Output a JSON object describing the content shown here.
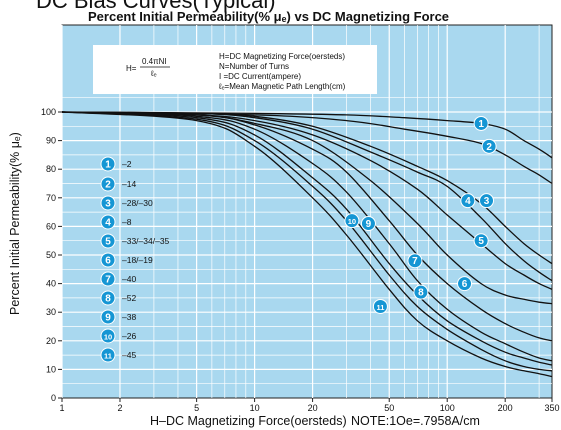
{
  "chart_data": {
    "type": "line",
    "title_top": "DC Bias Curves(Typical)",
    "title": "Percent Initial Permeability(% μₑ) vs DC Magnetizing Force",
    "xlabel": "H–DC Magnetizing Force(oersteds)",
    "xnote": "NOTE:1Oe=.7958A/cm",
    "ylabel": "Percent Initial Permeability(% μₑ)",
    "xscale": "log",
    "xlim": [
      1,
      350
    ],
    "ylim": [
      0,
      105
    ],
    "x_ticks": [
      1,
      2,
      5,
      10,
      20,
      50,
      100,
      200,
      350
    ],
    "y_ticks": [
      0,
      10,
      20,
      30,
      40,
      50,
      60,
      70,
      80,
      90,
      100
    ],
    "grid": true,
    "colors": {
      "plot_bg": "#a9d8ef",
      "grid": "#ffffff",
      "badge": "#1596d4",
      "curve": "#111111"
    },
    "formula": "H= 0.4πNI / ℓₑ",
    "notes": [
      "H=DC Magnetizing Force(oersteds)",
      "N=Number of Turns",
      "I =DC Current(ampere)",
      "ℓₑ=Mean Magnetic Path Length(cm)"
    ],
    "legend": [
      {
        "badge": "1",
        "label": "–2"
      },
      {
        "badge": "2",
        "label": "–14"
      },
      {
        "badge": "3",
        "label": "–28/–30"
      },
      {
        "badge": "4",
        "label": "–8"
      },
      {
        "badge": "5",
        "label": "–33/–34/–35"
      },
      {
        "badge": "6",
        "label": "–18/–19"
      },
      {
        "badge": "7",
        "label": "–40"
      },
      {
        "badge": "8",
        "label": "–52"
      },
      {
        "badge": "9",
        "label": "–38"
      },
      {
        "badge": "10",
        "label": "–26"
      },
      {
        "badge": "11",
        "label": "–45"
      }
    ],
    "series": [
      {
        "name": "1",
        "label_at": [
          150,
          96
        ],
        "points": [
          [
            1,
            100
          ],
          [
            10,
            99.5
          ],
          [
            30,
            99
          ],
          [
            60,
            98
          ],
          [
            100,
            97
          ],
          [
            150,
            96
          ],
          [
            200,
            94
          ],
          [
            250,
            90
          ],
          [
            300,
            87
          ],
          [
            350,
            84
          ]
        ]
      },
      {
        "name": "2",
        "label_at": [
          165,
          88
        ],
        "points": [
          [
            1,
            100
          ],
          [
            10,
            99
          ],
          [
            30,
            97
          ],
          [
            60,
            94
          ],
          [
            100,
            91.5
          ],
          [
            150,
            89
          ],
          [
            200,
            85
          ],
          [
            250,
            81
          ],
          [
            300,
            78
          ],
          [
            350,
            75
          ]
        ]
      },
      {
        "name": "3",
        "label_at": [
          160,
          69
        ],
        "points": [
          [
            1,
            100
          ],
          [
            5,
            99.5
          ],
          [
            10,
            98.5
          ],
          [
            20,
            95
          ],
          [
            40,
            88
          ],
          [
            70,
            81
          ],
          [
            100,
            76
          ],
          [
            150,
            68
          ],
          [
            200,
            60
          ],
          [
            250,
            54
          ],
          [
            300,
            50
          ],
          [
            350,
            47
          ]
        ]
      },
      {
        "name": "4",
        "label_at": [
          128,
          69
        ],
        "points": [
          [
            1,
            100
          ],
          [
            5,
            99.5
          ],
          [
            10,
            98
          ],
          [
            20,
            94
          ],
          [
            40,
            86
          ],
          [
            70,
            79
          ],
          [
            100,
            74
          ],
          [
            150,
            63
          ],
          [
            200,
            54
          ],
          [
            250,
            48
          ],
          [
            300,
            44
          ],
          [
            350,
            41
          ]
        ]
      },
      {
        "name": "5",
        "label_at": [
          150,
          55
        ],
        "points": [
          [
            1,
            100
          ],
          [
            5,
            99
          ],
          [
            10,
            97
          ],
          [
            20,
            92
          ],
          [
            40,
            83
          ],
          [
            70,
            73
          ],
          [
            100,
            64
          ],
          [
            150,
            54
          ],
          [
            200,
            47
          ],
          [
            250,
            43
          ],
          [
            300,
            40
          ],
          [
            350,
            38
          ]
        ]
      },
      {
        "name": "6",
        "label_at": [
          123,
          40
        ],
        "points": [
          [
            1,
            100
          ],
          [
            5,
            99
          ],
          [
            10,
            96
          ],
          [
            20,
            90
          ],
          [
            40,
            76
          ],
          [
            70,
            61
          ],
          [
            100,
            50
          ],
          [
            150,
            40
          ],
          [
            200,
            36
          ],
          [
            250,
            34.5
          ],
          [
            300,
            33.5
          ],
          [
            350,
            33
          ]
        ]
      },
      {
        "name": "7",
        "label_at": [
          68,
          48
        ],
        "points": [
          [
            1,
            100
          ],
          [
            5,
            99
          ],
          [
            10,
            95.5
          ],
          [
            20,
            87
          ],
          [
            30,
            79
          ],
          [
            50,
            62
          ],
          [
            70,
            50
          ],
          [
            100,
            40
          ],
          [
            150,
            31
          ],
          [
            200,
            26
          ],
          [
            250,
            23
          ],
          [
            300,
            21
          ],
          [
            350,
            20
          ]
        ]
      },
      {
        "name": "8",
        "label_at": [
          73,
          37
        ],
        "points": [
          [
            1,
            100
          ],
          [
            5,
            98.5
          ],
          [
            10,
            94
          ],
          [
            20,
            82
          ],
          [
            30,
            72
          ],
          [
            50,
            54
          ],
          [
            70,
            41
          ],
          [
            100,
            31
          ],
          [
            150,
            23
          ],
          [
            200,
            19
          ],
          [
            250,
            16
          ],
          [
            300,
            14
          ],
          [
            350,
            13
          ]
        ]
      },
      {
        "name": "9",
        "label_at": [
          39,
          61
        ],
        "points": [
          [
            1,
            100
          ],
          [
            5,
            98
          ],
          [
            10,
            92
          ],
          [
            20,
            77
          ],
          [
            30,
            66
          ],
          [
            50,
            47
          ],
          [
            70,
            36
          ],
          [
            100,
            27
          ],
          [
            150,
            20
          ],
          [
            200,
            16
          ],
          [
            250,
            14
          ],
          [
            300,
            12.5
          ],
          [
            350,
            11.5
          ]
        ]
      },
      {
        "name": "10",
        "label_at": [
          32,
          62
        ],
        "points": [
          [
            1,
            100
          ],
          [
            5,
            97.5
          ],
          [
            10,
            90
          ],
          [
            20,
            74
          ],
          [
            30,
            62
          ],
          [
            50,
            43
          ],
          [
            70,
            32
          ],
          [
            100,
            24
          ],
          [
            150,
            17
          ],
          [
            200,
            13
          ],
          [
            250,
            11
          ],
          [
            300,
            10
          ],
          [
            350,
            9.5
          ]
        ]
      },
      {
        "name": "11",
        "label_at": [
          45,
          32
        ],
        "points": [
          [
            1,
            100
          ],
          [
            5,
            97
          ],
          [
            10,
            88
          ],
          [
            20,
            70
          ],
          [
            30,
            57
          ],
          [
            50,
            38
          ],
          [
            70,
            27
          ],
          [
            100,
            20
          ],
          [
            150,
            14
          ],
          [
            200,
            11
          ],
          [
            250,
            9.5
          ],
          [
            300,
            8.5
          ],
          [
            350,
            7.5
          ]
        ]
      }
    ]
  }
}
